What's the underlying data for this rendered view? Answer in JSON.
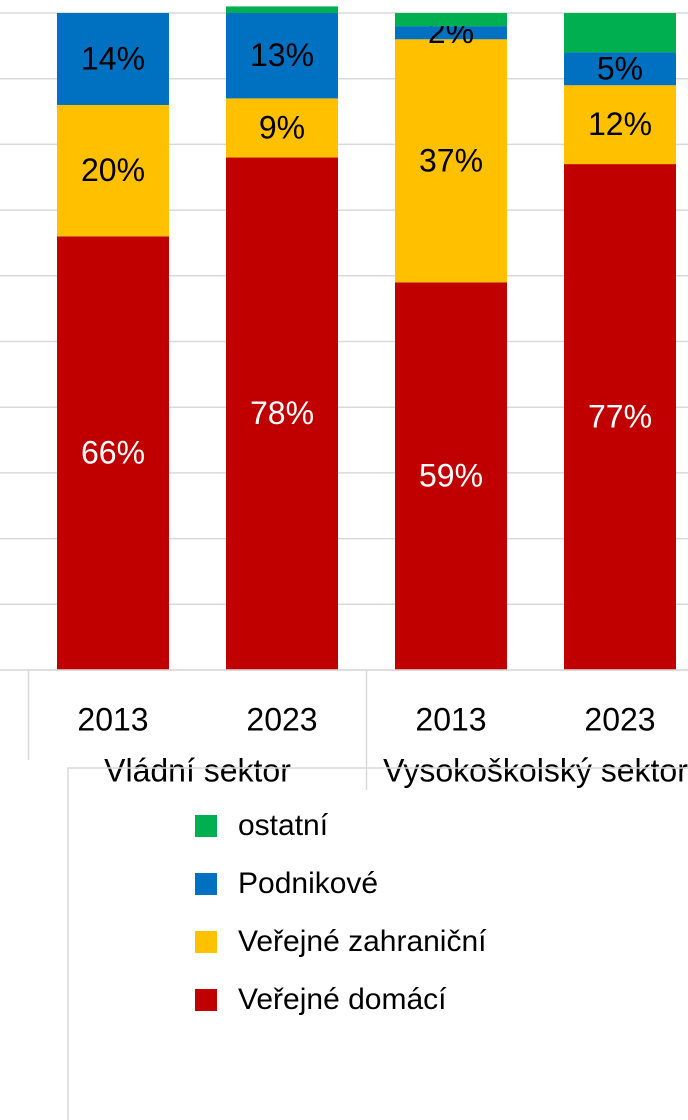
{
  "chart_data": {
    "type": "stacked_bar",
    "categories": [
      "2013",
      "2023",
      "2013",
      "2023"
    ],
    "groups": [
      {
        "name": "Vládní sektor",
        "size": 2
      },
      {
        "name": "Vysokoškolský sektor",
        "size": 2
      }
    ],
    "series": [
      {
        "name": "Veřejné domácí",
        "color": "#c00000",
        "label_color": "#ffffff",
        "values": [
          66,
          78,
          59,
          77
        ],
        "value_labels": [
          "66%",
          "78%",
          "59%",
          "77%"
        ]
      },
      {
        "name": "Veřejné zahraniční",
        "color": "#ffc000",
        "label_color": "#000000",
        "values": [
          20,
          9,
          37,
          12
        ],
        "value_labels": [
          "20%",
          "9%",
          "37%",
          "12%"
        ]
      },
      {
        "name": "Podnikové",
        "color": "#0070c0",
        "label_color": "#000000",
        "values": [
          14,
          13,
          2,
          5
        ],
        "value_labels": [
          "14%",
          "13%",
          "2%",
          "5%"
        ]
      },
      {
        "name": "ostatní",
        "color": "#00b050",
        "label_color": "#000000",
        "values": [
          0,
          1,
          2,
          6
        ],
        "value_labels": [
          null,
          null,
          null,
          null
        ]
      }
    ],
    "ylim": [
      0,
      100
    ],
    "yticks": [
      0,
      10,
      20,
      30,
      40,
      50,
      60,
      70,
      80,
      90,
      100
    ],
    "grid": true,
    "legend": "bottom"
  }
}
